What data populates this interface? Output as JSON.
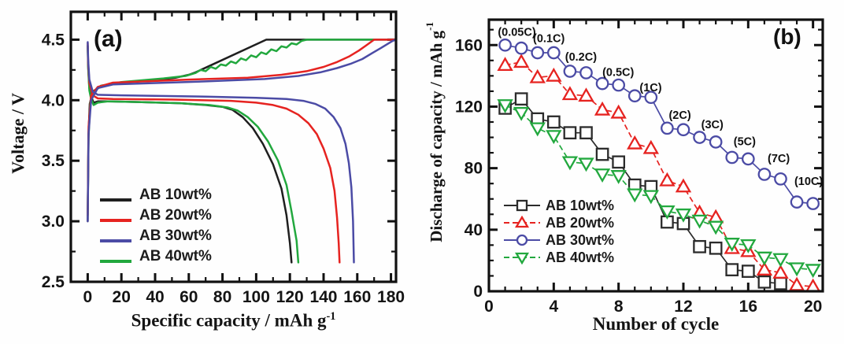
{
  "chart_data": [
    {
      "type": "line",
      "panel_label": "(a)",
      "xlabel": "Specific capacity / mAh g",
      "xlabel_sup": "-1",
      "ylabel": "Voltage / V",
      "xlim": [
        -10,
        183
      ],
      "ylim": [
        2.5,
        4.73
      ],
      "xtick_major": [
        0,
        20,
        40,
        60,
        80,
        100,
        120,
        140,
        160,
        180
      ],
      "xtick_labels": [
        "0",
        "20",
        "40",
        "60",
        "80",
        "100",
        "120",
        "140",
        "160",
        "180"
      ],
      "xtick_minor_step": 10,
      "ytick_major": [
        2.5,
        3.0,
        3.5,
        4.0,
        4.5
      ],
      "ytick_labels": [
        "2.5",
        "3.0",
        "3.5",
        "4.0",
        "4.5"
      ],
      "ytick_minor_step": 0.25,
      "grid": false,
      "legend_position": "lower-left-inside",
      "draw_order": [
        0,
        3,
        1,
        2
      ],
      "series": [
        {
          "name": "AB 10wt%",
          "color": "#1f1f1f",
          "charge": [
            [
              0,
              3.0
            ],
            [
              0.4,
              3.7
            ],
            [
              1.2,
              3.97
            ],
            [
              3,
              4.07
            ],
            [
              8,
              4.12
            ],
            [
              20,
              4.145
            ],
            [
              40,
              4.165
            ],
            [
              52,
              4.185
            ],
            [
              60,
              4.21
            ],
            [
              64,
              4.23
            ],
            [
              106,
              4.5
            ],
            [
              183,
              4.5
            ]
          ],
          "discharge": [
            [
              0,
              4.45
            ],
            [
              0.3,
              4.28
            ],
            [
              1,
              4.1
            ],
            [
              2,
              4.03
            ],
            [
              3.5,
              3.98
            ],
            [
              6,
              3.99
            ],
            [
              12,
              3.99
            ],
            [
              30,
              3.985
            ],
            [
              55,
              3.975
            ],
            [
              70,
              3.96
            ],
            [
              80,
              3.945
            ],
            [
              86,
              3.92
            ],
            [
              92,
              3.86
            ],
            [
              98,
              3.77
            ],
            [
              104,
              3.64
            ],
            [
              110,
              3.47
            ],
            [
              115,
              3.27
            ],
            [
              118,
              3.05
            ],
            [
              120,
              2.82
            ],
            [
              121,
              2.66
            ]
          ]
        },
        {
          "name": "AB 20wt%",
          "color": "#e62320",
          "charge": [
            [
              0,
              3.05
            ],
            [
              0.5,
              3.78
            ],
            [
              2,
              4.04
            ],
            [
              6,
              4.11
            ],
            [
              15,
              4.145
            ],
            [
              60,
              4.17
            ],
            [
              95,
              4.185
            ],
            [
              115,
              4.21
            ],
            [
              130,
              4.24
            ],
            [
              140,
              4.275
            ],
            [
              148,
              4.315
            ],
            [
              155,
              4.36
            ],
            [
              161,
              4.41
            ],
            [
              165,
              4.45
            ],
            [
              168,
              4.48
            ],
            [
              170,
              4.5
            ],
            [
              183,
              4.5
            ]
          ],
          "discharge": [
            [
              0,
              4.47
            ],
            [
              0.3,
              4.3
            ],
            [
              1,
              4.14
            ],
            [
              3,
              4.04
            ],
            [
              6,
              4.015
            ],
            [
              15,
              4.01
            ],
            [
              50,
              4.005
            ],
            [
              85,
              3.995
            ],
            [
              100,
              3.98
            ],
            [
              110,
              3.96
            ],
            [
              118,
              3.93
            ],
            [
              125,
              3.88
            ],
            [
              131,
              3.81
            ],
            [
              136,
              3.72
            ],
            [
              140,
              3.6
            ],
            [
              144,
              3.44
            ],
            [
              146.5,
              3.25
            ],
            [
              148,
              3.03
            ],
            [
              149,
              2.82
            ],
            [
              149.5,
              2.66
            ]
          ]
        },
        {
          "name": "AB 30wt%",
          "color": "#4b4ba5",
          "charge": [
            [
              0,
              3.0
            ],
            [
              0.5,
              3.72
            ],
            [
              2,
              4.0
            ],
            [
              6,
              4.1
            ],
            [
              15,
              4.13
            ],
            [
              70,
              4.155
            ],
            [
              105,
              4.175
            ],
            [
              125,
              4.2
            ],
            [
              138,
              4.23
            ],
            [
              148,
              4.265
            ],
            [
              156,
              4.3
            ],
            [
              163,
              4.34
            ],
            [
              169,
              4.39
            ],
            [
              174,
              4.43
            ],
            [
              178,
              4.465
            ],
            [
              181,
              4.49
            ],
            [
              183,
              4.5
            ]
          ],
          "discharge": [
            [
              0,
              4.48
            ],
            [
              0.3,
              4.33
            ],
            [
              1,
              4.17
            ],
            [
              3,
              4.07
            ],
            [
              6,
              4.045
            ],
            [
              20,
              4.04
            ],
            [
              70,
              4.03
            ],
            [
              100,
              4.02
            ],
            [
              118,
              4.01
            ],
            [
              128,
              3.995
            ],
            [
              135,
              3.97
            ],
            [
              141,
              3.93
            ],
            [
              146,
              3.86
            ],
            [
              150,
              3.77
            ],
            [
              153,
              3.64
            ],
            [
              155,
              3.48
            ],
            [
              156.5,
              3.28
            ],
            [
              157.5,
              3.0
            ],
            [
              158,
              2.66
            ]
          ]
        },
        {
          "name": "AB 40wt%",
          "color": "#22a83e",
          "charge": [
            [
              0,
              3.05
            ],
            [
              0.5,
              3.7
            ],
            [
              1.5,
              3.98
            ],
            [
              3,
              4.06
            ],
            [
              8,
              4.12
            ],
            [
              20,
              4.15
            ],
            [
              45,
              4.18
            ],
            [
              58,
              4.2
            ],
            [
              64,
              4.225
            ],
            [
              67,
              4.25
            ],
            [
              70,
              4.24
            ],
            [
              73,
              4.275
            ],
            [
              76,
              4.26
            ],
            [
              79,
              4.295
            ],
            [
              82,
              4.285
            ],
            [
              85,
              4.32
            ],
            [
              88,
              4.305
            ],
            [
              91,
              4.345
            ],
            [
              94,
              4.33
            ],
            [
              97,
              4.37
            ],
            [
              100,
              4.355
            ],
            [
              103,
              4.395
            ],
            [
              106,
              4.38
            ],
            [
              109,
              4.42
            ],
            [
              112,
              4.405
            ],
            [
              115,
              4.445
            ],
            [
              118,
              4.435
            ],
            [
              121,
              4.47
            ],
            [
              124,
              4.46
            ],
            [
              127,
              4.49
            ],
            [
              130,
              4.5
            ],
            [
              170,
              4.5
            ]
          ],
          "discharge": [
            [
              0,
              4.45
            ],
            [
              0.3,
              4.26
            ],
            [
              1,
              4.08
            ],
            [
              2,
              4.01
            ],
            [
              3.5,
              3.96
            ],
            [
              6,
              3.98
            ],
            [
              12,
              3.99
            ],
            [
              30,
              3.985
            ],
            [
              55,
              3.975
            ],
            [
              72,
              3.96
            ],
            [
              83,
              3.94
            ],
            [
              89,
              3.915
            ],
            [
              95,
              3.86
            ],
            [
              101,
              3.78
            ],
            [
              107,
              3.66
            ],
            [
              113,
              3.5
            ],
            [
              118,
              3.3
            ],
            [
              121,
              3.08
            ],
            [
              124,
              2.84
            ],
            [
              125,
              2.66
            ]
          ]
        }
      ]
    },
    {
      "type": "scatter-line",
      "panel_label": "(b)",
      "xlabel": "Number of cycle",
      "ylabel": "Discharge of capacity / mAh g",
      "ylabel_sup": "-1",
      "xlim": [
        0,
        20.6
      ],
      "ylim": [
        0,
        176.5
      ],
      "xtick_major": [
        0,
        4,
        8,
        12,
        16,
        20
      ],
      "xtick_labels": [
        "0",
        "4",
        "8",
        "12",
        "16",
        "20"
      ],
      "xtick_minor_step": 1,
      "ytick_major": [
        0,
        40,
        80,
        120,
        160
      ],
      "ytick_labels": [
        "0",
        "40",
        "80",
        "120",
        "160"
      ],
      "ytick_minor_step": 10,
      "grid": false,
      "legend_position": "lower-left-inside",
      "x": [
        1,
        2,
        3,
        4,
        5,
        6,
        7,
        8,
        9,
        10,
        11,
        12,
        13,
        14,
        15,
        16,
        17,
        18,
        19,
        20
      ],
      "series": [
        {
          "name": "AB 10wt%",
          "marker": "square",
          "color": "#2b2b2b",
          "dash": "",
          "values": [
            119,
            125,
            112,
            110,
            103,
            103,
            89,
            84,
            69,
            68,
            45,
            44,
            29,
            28,
            14,
            13,
            6,
            5,
            null,
            null
          ]
        },
        {
          "name": "AB 20wt%",
          "marker": "triangle-up",
          "color": "#e62320",
          "dash": "7 4",
          "values": [
            147,
            149,
            139,
            140,
            128,
            127,
            118,
            116,
            96,
            93,
            72,
            68,
            51,
            48,
            28,
            26,
            14,
            12,
            4,
            3
          ]
        },
        {
          "name": "AB 30wt%",
          "marker": "circle",
          "color": "#4b4ba5",
          "dash": "",
          "values": [
            160,
            158,
            155,
            155,
            143,
            142,
            135,
            134,
            127,
            126,
            106,
            105,
            100,
            97,
            87,
            86,
            76,
            73,
            58,
            57
          ]
        },
        {
          "name": "AB 40wt%",
          "marker": "triangle-down",
          "color": "#22a83e",
          "dash": "7 4",
          "values": [
            121,
            116,
            106,
            101,
            84,
            83,
            76,
            75,
            63,
            62,
            52,
            50,
            46,
            42,
            31,
            30,
            22,
            21,
            15,
            14
          ]
        }
      ],
      "rate_labels": [
        {
          "label": "(0.05C)",
          "x": 0.55,
          "y": 166
        },
        {
          "label": "(0.1C)",
          "x": 2.72,
          "y": 162
        },
        {
          "label": "(0.2C)",
          "x": 4.7,
          "y": 150
        },
        {
          "label": "(0.5C)",
          "x": 7.0,
          "y": 140
        },
        {
          "label": "(1C)",
          "x": 9.3,
          "y": 130
        },
        {
          "label": "(2C)",
          "x": 11.1,
          "y": 112
        },
        {
          "label": "(3C)",
          "x": 13.1,
          "y": 106
        },
        {
          "label": "(5C)",
          "x": 15.1,
          "y": 95
        },
        {
          "label": "(7C)",
          "x": 17.2,
          "y": 84
        },
        {
          "label": "(10C)",
          "x": 18.85,
          "y": 69
        }
      ]
    }
  ]
}
